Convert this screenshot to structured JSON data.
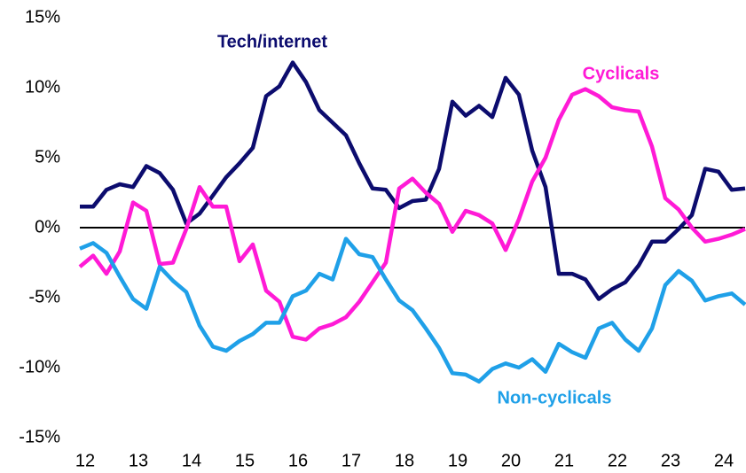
{
  "chart_data": {
    "type": "line",
    "x": [
      11.9,
      12.15,
      12.4,
      12.65,
      12.9,
      13.15,
      13.4,
      13.65,
      13.9,
      14.15,
      14.4,
      14.65,
      14.9,
      15.15,
      15.4,
      15.65,
      15.9,
      16.15,
      16.4,
      16.65,
      16.9,
      17.15,
      17.4,
      17.65,
      17.9,
      18.15,
      18.4,
      18.65,
      18.9,
      19.15,
      19.4,
      19.65,
      19.9,
      20.15,
      20.4,
      20.65,
      20.9,
      21.15,
      21.4,
      21.65,
      21.9,
      22.15,
      22.4,
      22.65,
      22.9,
      23.15,
      23.4,
      23.65,
      23.9,
      24.15,
      24.4
    ],
    "series": [
      {
        "name": "Tech/internet",
        "color": "#0c0c6e",
        "values": [
          1.5,
          1.5,
          2.7,
          3.1,
          2.9,
          4.4,
          3.9,
          2.7,
          0.3,
          1.0,
          2.3,
          3.6,
          4.6,
          5.7,
          9.4,
          10.1,
          11.8,
          10.4,
          8.4,
          7.5,
          6.6,
          4.6,
          2.8,
          2.7,
          1.4,
          1.9,
          2.0,
          4.2,
          9.0,
          8.0,
          8.7,
          7.9,
          10.7,
          9.5,
          5.5,
          2.9,
          -3.3,
          -3.3,
          -3.7,
          -5.1,
          -4.4,
          -3.9,
          -2.7,
          -1.0,
          -1.0,
          -0.1,
          0.9,
          4.2,
          4.0,
          2.7,
          2.8
        ]
      },
      {
        "name": "Cyclicals",
        "color": "#ff1ad6",
        "values": [
          -2.8,
          -2.0,
          -3.3,
          -1.7,
          1.8,
          1.2,
          -2.6,
          -2.5,
          -0.1,
          2.9,
          1.5,
          1.5,
          -2.4,
          -1.2,
          -4.5,
          -5.3,
          -7.8,
          -8.0,
          -7.2,
          -6.9,
          -6.4,
          -5.3,
          -3.9,
          -2.5,
          2.8,
          3.5,
          2.5,
          1.7,
          -0.3,
          1.2,
          0.9,
          0.3,
          -1.6,
          0.6,
          3.3,
          5.0,
          7.7,
          9.5,
          9.9,
          9.4,
          8.6,
          8.4,
          8.3,
          5.8,
          2.1,
          1.3,
          0.0,
          -1.0,
          -0.8,
          -0.5,
          -0.1
        ]
      },
      {
        "name": "Non-cyclicals",
        "color": "#1fa0e8",
        "values": [
          -1.5,
          -1.1,
          -1.8,
          -3.5,
          -5.1,
          -5.8,
          -2.8,
          -3.8,
          -4.6,
          -7.0,
          -8.5,
          -8.8,
          -8.1,
          -7.6,
          -6.8,
          -6.8,
          -4.9,
          -4.5,
          -3.3,
          -3.7,
          -0.8,
          -1.9,
          -2.1,
          -3.7,
          -5.2,
          -5.9,
          -7.2,
          -8.6,
          -10.4,
          -10.5,
          -11.0,
          -10.1,
          -9.7,
          -10.0,
          -9.4,
          -10.3,
          -8.3,
          -8.9,
          -9.3,
          -7.2,
          -6.8,
          -8.0,
          -8.8,
          -7.2,
          -4.1,
          -3.1,
          -3.8,
          -5.2,
          -4.9,
          -4.7,
          -5.5
        ]
      }
    ],
    "xlim": [
      11.9,
      24.4
    ],
    "xticks": [
      12,
      13,
      14,
      15,
      16,
      17,
      18,
      19,
      20,
      21,
      22,
      23,
      24
    ],
    "ylim": [
      -15,
      15
    ],
    "yticks": [
      {
        "value": -15,
        "label": "-15%"
      },
      {
        "value": -10,
        "label": "-10%"
      },
      {
        "value": -5,
        "label": "-5%"
      },
      {
        "value": 0,
        "label": "0%"
      },
      {
        "value": 5,
        "label": "5%"
      },
      {
        "value": 10,
        "label": "10%"
      },
      {
        "value": 15,
        "label": "15%"
      }
    ],
    "zero_line": true
  }
}
